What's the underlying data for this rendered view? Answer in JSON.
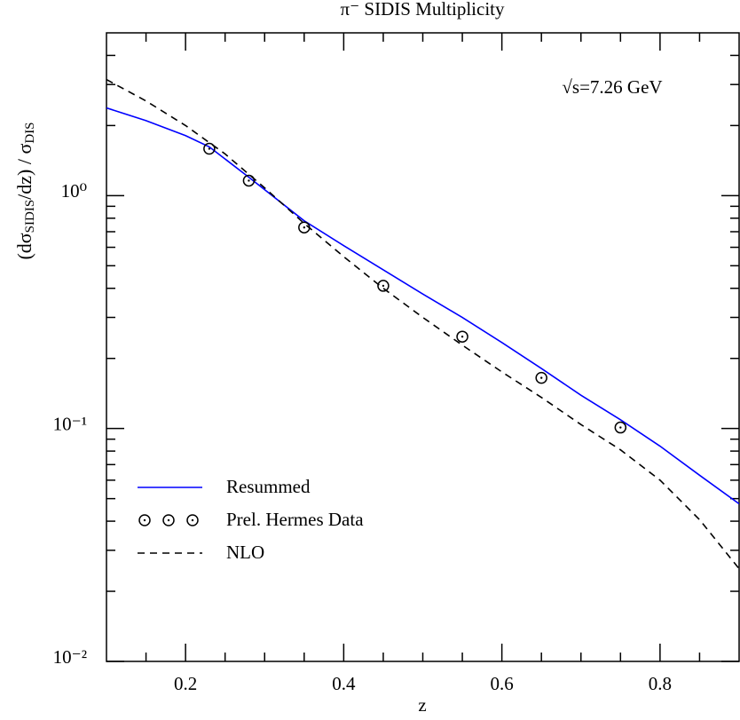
{
  "chart_data": {
    "type": "line",
    "title": "π⁻ SIDIS Multiplicity",
    "xlabel": "z",
    "ylabel": [
      "(dσ",
      "SIDIS",
      "/dz)  /  σ",
      "DIS"
    ],
    "annotation": "√s=7.26 GeV",
    "xlim": [
      0.1,
      0.9
    ],
    "xticks": [
      0.2,
      0.4,
      0.6,
      0.8
    ],
    "xminorticks": [
      0.15,
      0.25,
      0.3,
      0.35,
      0.45,
      0.5,
      0.55,
      0.65,
      0.7,
      0.75,
      0.85
    ],
    "ylim": [
      0.01,
      5
    ],
    "ylog": true,
    "yticks": [
      {
        "value": 0.01,
        "label": "10⁻²"
      },
      {
        "value": 0.1,
        "label": "10⁻¹"
      },
      {
        "value": 1,
        "label": "10⁰"
      }
    ],
    "yminorticks": [
      0.02,
      0.03,
      0.04,
      0.05,
      0.06,
      0.07,
      0.08,
      0.09,
      0.2,
      0.3,
      0.4,
      0.5,
      0.6,
      0.7,
      0.8,
      0.9,
      2,
      3,
      4
    ],
    "legend": "lower left",
    "series": [
      {
        "name": "Resummed",
        "color": "#0000ff",
        "style": "solid",
        "x": [
          0.1,
          0.15,
          0.2,
          0.23,
          0.28,
          0.35,
          0.4,
          0.45,
          0.5,
          0.55,
          0.6,
          0.65,
          0.7,
          0.75,
          0.8,
          0.85,
          0.9
        ],
        "values": [
          2.38,
          2.1,
          1.81,
          1.62,
          1.2,
          0.78,
          0.61,
          0.48,
          0.378,
          0.3,
          0.234,
          0.181,
          0.139,
          0.109,
          0.084,
          0.063,
          0.0475
        ]
      },
      {
        "name": "Prel. Hermes Data",
        "color": "#000000",
        "style": "points",
        "x": [
          0.23,
          0.28,
          0.35,
          0.45,
          0.55,
          0.65,
          0.75
        ],
        "values": [
          1.59,
          1.16,
          0.73,
          0.41,
          0.248,
          0.165,
          0.101
        ]
      },
      {
        "name": "NLO",
        "color": "#000000",
        "style": "dashed",
        "x": [
          0.1,
          0.15,
          0.2,
          0.25,
          0.3,
          0.35,
          0.4,
          0.45,
          0.5,
          0.55,
          0.6,
          0.65,
          0.7,
          0.75,
          0.8,
          0.85,
          0.9
        ],
        "values": [
          3.15,
          2.55,
          2.0,
          1.51,
          1.08,
          0.76,
          0.547,
          0.4,
          0.3,
          0.228,
          0.175,
          0.136,
          0.104,
          0.081,
          0.06,
          0.0406,
          0.025
        ]
      }
    ]
  }
}
